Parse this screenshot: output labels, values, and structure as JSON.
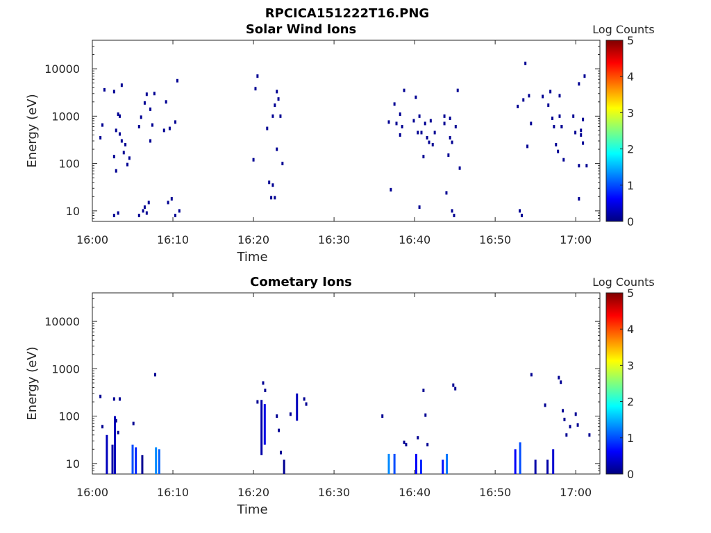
{
  "figure_title": "RPCICA151222T16.PNG",
  "colormap_stops": [
    "#00007f",
    "#0000ff",
    "#007fff",
    "#00ffff",
    "#7fff7f",
    "#ffff00",
    "#ff7f00",
    "#ff0000",
    "#7f0000"
  ],
  "chart_data": [
    {
      "type": "heatmap",
      "title": "Solar Wind Ions",
      "xlabel": "Time",
      "ylabel": "Energy (eV)",
      "yscale": "log",
      "xlim": [
        "16:00",
        "17:03"
      ],
      "ylim": [
        6,
        40000
      ],
      "x_ticks": [
        "16:00",
        "16:10",
        "16:20",
        "16:30",
        "16:40",
        "16:50",
        "17:00"
      ],
      "y_ticks": [
        "10",
        "100",
        "1000",
        "10000"
      ],
      "colorbar": {
        "label": "Log Counts",
        "range": [
          0,
          5
        ],
        "ticks": [
          "0",
          "1",
          "2",
          "3",
          "4",
          "5"
        ]
      },
      "points": [
        {
          "t": "16:01",
          "e": [
            350,
            650,
            3600
          ]
        },
        {
          "t": "16:02",
          "e": [
            140,
            500,
            1100,
            3300,
            70,
            9,
            8
          ]
        },
        {
          "t": "16:03",
          "e": [
            1000,
            300,
            170,
            420,
            4500
          ]
        },
        {
          "t": "16:04",
          "e": [
            250,
            95,
            130
          ]
        },
        {
          "t": "16:05",
          "e": [
            600,
            950,
            10,
            8
          ]
        },
        {
          "t": "16:06",
          "e": [
            1900,
            2900,
            15,
            12,
            9
          ]
        },
        {
          "t": "16:07",
          "e": [
            1400,
            650,
            3000,
            300
          ]
        },
        {
          "t": "16:08",
          "e": [
            500,
            2000,
            15
          ]
        },
        {
          "t": "16:09",
          "e": [
            550,
            18
          ]
        },
        {
          "t": "16:10",
          "e": [
            750,
            5600,
            10,
            8
          ]
        },
        {
          "t": "16:20",
          "e": [
            120,
            3800,
            7000
          ]
        },
        {
          "t": "16:21",
          "e": [
            550,
            40,
            19
          ]
        },
        {
          "t": "16:22",
          "e": [
            1000,
            1700,
            3300,
            35,
            19,
            200
          ]
        },
        {
          "t": "16:23",
          "e": [
            2300,
            1000,
            100
          ]
        },
        {
          "t": "16:36",
          "e": [
            750,
            28
          ]
        },
        {
          "t": "16:37",
          "e": [
            1800,
            700
          ]
        },
        {
          "t": "16:38",
          "e": [
            1100,
            600,
            3500,
            400
          ]
        },
        {
          "t": "16:39",
          "e": [
            800,
            2500,
            450
          ]
        },
        {
          "t": "16:40",
          "e": [
            1000,
            450,
            140,
            12
          ]
        },
        {
          "t": "16:41",
          "e": [
            700,
            350,
            280
          ]
        },
        {
          "t": "16:42",
          "e": [
            800,
            250,
            450
          ]
        },
        {
          "t": "16:43",
          "e": [
            1000,
            24,
            150,
            700
          ]
        },
        {
          "t": "16:44",
          "e": [
            900,
            10,
            8,
            350,
            280
          ]
        },
        {
          "t": "16:45",
          "e": [
            600,
            3500,
            80
          ]
        },
        {
          "t": "16:52",
          "e": [
            1600,
            10,
            8
          ]
        },
        {
          "t": "16:53",
          "e": [
            2200,
            13000,
            230
          ]
        },
        {
          "t": "16:54",
          "e": [
            2700,
            700
          ]
        },
        {
          "t": "16:55",
          "e": [
            2600
          ]
        },
        {
          "t": "16:56",
          "e": [
            1700,
            3300,
            900
          ]
        },
        {
          "t": "16:57",
          "e": [
            600,
            250,
            180
          ]
        },
        {
          "t": "16:58",
          "e": [
            1000,
            600,
            120,
            2700,
            600
          ]
        },
        {
          "t": "16:59",
          "e": [
            1000,
            450
          ]
        },
        {
          "t": "17:00",
          "e": [
            4800,
            400,
            850,
            90,
            500,
            270,
            18
          ]
        },
        {
          "t": "17:01",
          "e": [
            7000,
            90
          ]
        }
      ]
    },
    {
      "type": "heatmap",
      "title": "Cometary Ions",
      "xlabel": "Time",
      "ylabel": "Energy (eV)",
      "yscale": "log",
      "xlim": [
        "16:00",
        "17:03"
      ],
      "ylim": [
        6,
        40000
      ],
      "x_ticks": [
        "16:00",
        "16:10",
        "16:20",
        "16:30",
        "16:40",
        "16:50",
        "17:00"
      ],
      "y_ticks": [
        "10",
        "100",
        "1000",
        "10000"
      ],
      "colorbar": {
        "label": "Log Counts",
        "range": [
          0,
          5
        ],
        "ticks": [
          "0",
          "1",
          "2",
          "3",
          "4",
          "5"
        ]
      },
      "columns": [
        {
          "t": "16:01.8",
          "lo": 6,
          "hi": 40,
          "c": 0.3
        },
        {
          "t": "16:02.5",
          "lo": 6,
          "hi": 25,
          "c": 0.2
        },
        {
          "t": "16:02.8",
          "lo": 6,
          "hi": 100,
          "c": 0.3
        },
        {
          "t": "16:05.0",
          "lo": 6,
          "hi": 25,
          "c": 1.0
        },
        {
          "t": "16:05.4",
          "lo": 6,
          "hi": 22,
          "c": 0.8
        },
        {
          "t": "16:06.2",
          "lo": 6,
          "hi": 15,
          "c": 0.1
        },
        {
          "t": "16:07.9",
          "lo": 6,
          "hi": 22,
          "c": 1.3
        },
        {
          "t": "16:08.3",
          "lo": 6,
          "hi": 20,
          "c": 1.1
        },
        {
          "t": "16:21.0",
          "lo": 15,
          "hi": 220,
          "c": 0.2
        },
        {
          "t": "16:21.4",
          "lo": 25,
          "hi": 180,
          "c": 0.5
        },
        {
          "t": "16:23.8",
          "lo": 6,
          "hi": 12,
          "c": 0.1
        },
        {
          "t": "16:25.4",
          "lo": 80,
          "hi": 300,
          "c": 0.3
        },
        {
          "t": "16:36.8",
          "lo": 6,
          "hi": 16,
          "c": 1.3
        },
        {
          "t": "16:37.5",
          "lo": 6,
          "hi": 16,
          "c": 1.0
        },
        {
          "t": "16:40.2",
          "lo": 6,
          "hi": 16,
          "c": 0.6
        },
        {
          "t": "16:40.8",
          "lo": 6,
          "hi": 12,
          "c": 0.8
        },
        {
          "t": "16:43.5",
          "lo": 6,
          "hi": 12,
          "c": 0.7
        },
        {
          "t": "16:44.0",
          "lo": 6,
          "hi": 16,
          "c": 1.2
        },
        {
          "t": "16:52.5",
          "lo": 6,
          "hi": 20,
          "c": 0.6
        },
        {
          "t": "16:53.1",
          "lo": 6,
          "hi": 28,
          "c": 1.0
        },
        {
          "t": "16:55.0",
          "lo": 6,
          "hi": 12,
          "c": 0.2
        },
        {
          "t": "16:56.5",
          "lo": 6,
          "hi": 12,
          "c": 0.2
        },
        {
          "t": "16:57.2",
          "lo": 6,
          "hi": 20,
          "c": 0.4
        }
      ],
      "points": [
        {
          "t": "16:01",
          "e": [
            260,
            60
          ]
        },
        {
          "t": "16:02",
          "e": [
            230,
            80,
            45
          ]
        },
        {
          "t": "16:03",
          "e": [
            230
          ]
        },
        {
          "t": "16:05",
          "e": [
            70
          ]
        },
        {
          "t": "16:07",
          "e": [
            750
          ]
        },
        {
          "t": "16:20",
          "e": [
            200
          ]
        },
        {
          "t": "16:21",
          "e": [
            500,
            350
          ]
        },
        {
          "t": "16:22",
          "e": [
            100,
            50,
            17
          ]
        },
        {
          "t": "16:24",
          "e": [
            110
          ]
        },
        {
          "t": "16:26",
          "e": [
            230,
            180
          ]
        },
        {
          "t": "16:36",
          "e": [
            100
          ]
        },
        {
          "t": "16:38",
          "e": [
            28,
            25
          ]
        },
        {
          "t": "16:40",
          "e": [
            35
          ]
        },
        {
          "t": "16:41",
          "e": [
            350,
            105,
            25
          ]
        },
        {
          "t": "16:44",
          "e": [
            450,
            380
          ]
        },
        {
          "t": "16:54",
          "e": [
            750
          ]
        },
        {
          "t": "16:56",
          "e": [
            170
          ]
        },
        {
          "t": "16:57",
          "e": [
            650,
            520,
            130
          ]
        },
        {
          "t": "16:58",
          "e": [
            85,
            40
          ]
        },
        {
          "t": "16:59",
          "e": [
            60
          ]
        },
        {
          "t": "17:00",
          "e": [
            110,
            65
          ]
        },
        {
          "t": "17:01",
          "e": [
            40
          ]
        }
      ]
    }
  ]
}
